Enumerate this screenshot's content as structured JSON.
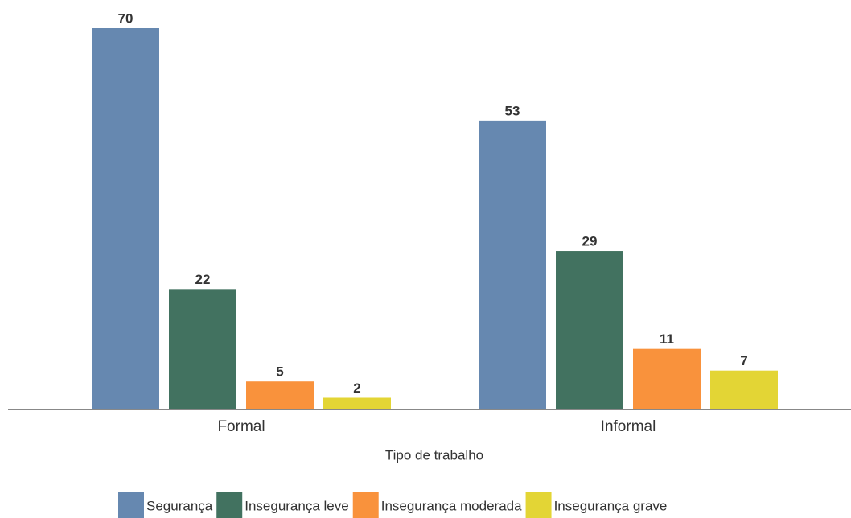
{
  "chart_data": {
    "type": "bar",
    "x_label": "Tipo de trabalho",
    "categories": [
      "Formal",
      "Informal"
    ],
    "series": [
      {
        "name": "Segurança",
        "color": "#6688b0",
        "values": [
          70,
          53
        ]
      },
      {
        "name": "Insegurança leve",
        "color": "#427260",
        "values": [
          22,
          29
        ]
      },
      {
        "name": "Insegurança moderada",
        "color": "#f9923c",
        "values": [
          5,
          11
        ]
      },
      {
        "name": "Insegurança grave",
        "color": "#e3d535",
        "values": [
          2,
          7
        ]
      }
    ],
    "legend": "bottom"
  }
}
